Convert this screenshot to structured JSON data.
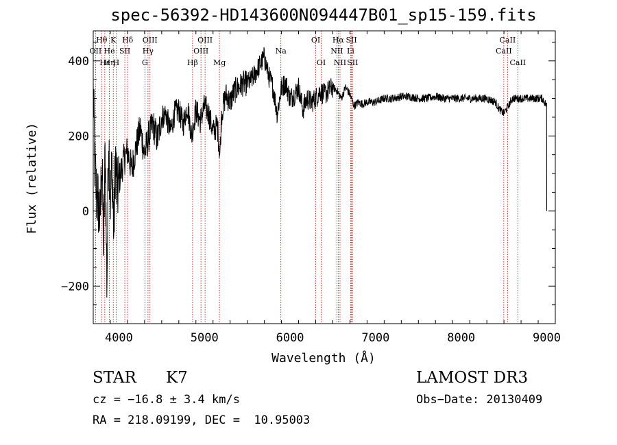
{
  "chart_data": {
    "type": "line",
    "title": "spec-56392-HD143600N094447B01_sp15-159.fits",
    "xlabel": "Wavelength (Å)",
    "ylabel": "Flux (relative)",
    "xlim": [
      3700,
      9100
    ],
    "ylim": [
      -300,
      480
    ],
    "x_ticks": [
      4000,
      5000,
      6000,
      7000,
      8000,
      9000
    ],
    "y_ticks": [
      -200,
      0,
      200,
      400
    ],
    "grid": false,
    "series": [
      {
        "x": [
          3700,
          3720,
          3740,
          3760,
          3780,
          3800,
          3820,
          3840,
          3860,
          3880,
          3900,
          3920,
          3940,
          3960,
          3980,
          4000,
          4050,
          4100,
          4150,
          4200,
          4250,
          4300,
          4350,
          4400,
          4450,
          4500,
          4550,
          4600,
          4650,
          4700,
          4750,
          4800,
          4850,
          4900,
          4950,
          5000,
          5050,
          5100,
          5150,
          5180,
          5200,
          5250,
          5300,
          5350,
          5400,
          5450,
          5500,
          5550,
          5600,
          5650,
          5700,
          5750,
          5800,
          5850,
          5900,
          5950,
          6000,
          6050,
          6100,
          6150,
          6200,
          6250,
          6300,
          6350,
          6400,
          6450,
          6500,
          6550,
          6600,
          6650,
          6700,
          6750,
          6800,
          6850,
          6900,
          7000,
          7100,
          7200,
          7300,
          7400,
          7500,
          7600,
          7700,
          7800,
          7900,
          8000,
          8100,
          8200,
          8300,
          8400,
          8450,
          8500,
          8550,
          8600,
          8650,
          8700,
          8750,
          8800,
          8850,
          8900,
          8950,
          9000
        ],
        "y": [
          320,
          110,
          40,
          20,
          -30,
          140,
          -100,
          170,
          -200,
          210,
          30,
          120,
          -60,
          150,
          40,
          80,
          130,
          160,
          110,
          170,
          220,
          150,
          200,
          230,
          190,
          250,
          260,
          210,
          260,
          270,
          230,
          280,
          200,
          270,
          240,
          280,
          260,
          210,
          230,
          150,
          260,
          310,
          290,
          320,
          330,
          340,
          340,
          350,
          370,
          390,
          410,
          360,
          330,
          260,
          330,
          340,
          300,
          310,
          330,
          270,
          300,
          290,
          300,
          320,
          310,
          320,
          330,
          320,
          300,
          330,
          310,
          280,
          290,
          285,
          290,
          290,
          300,
          300,
          305,
          305,
          300,
          300,
          305,
          300,
          300,
          300,
          300,
          300,
          300,
          290,
          270,
          260,
          280,
          300,
          300,
          300,
          300,
          300,
          300,
          300,
          300,
          280
        ]
      }
    ],
    "line_labels": [
      {
        "text": "Hθ",
        "x": 3798,
        "row": 1
      },
      {
        "text": "K",
        "x": 3934,
        "row": 1
      },
      {
        "text": "Hδ",
        "x": 4102,
        "row": 1
      },
      {
        "text": "OIII",
        "x": 4363,
        "row": 1
      },
      {
        "text": "OIII",
        "x": 5007,
        "row": 1
      },
      {
        "text": "OI",
        "x": 6300,
        "row": 1
      },
      {
        "text": "Hα",
        "x": 6563,
        "row": 1
      },
      {
        "text": "SII",
        "x": 6717,
        "row": 1
      },
      {
        "text": "CaII",
        "x": 8542,
        "row": 1
      },
      {
        "text": "OII",
        "x": 3727,
        "row": 2
      },
      {
        "text": "He",
        "x": 3889,
        "row": 2
      },
      {
        "text": "SII",
        "x": 4069,
        "row": 2
      },
      {
        "text": "Hγ",
        "x": 4340,
        "row": 2
      },
      {
        "text": "OIII",
        "x": 4959,
        "row": 2
      },
      {
        "text": "Na",
        "x": 5893,
        "row": 2
      },
      {
        "text": "NII",
        "x": 6548,
        "row": 2
      },
      {
        "text": "Li",
        "x": 6708,
        "row": 2
      },
      {
        "text": "CaII",
        "x": 8498,
        "row": 2
      },
      {
        "text": "Hε",
        "x": 3835,
        "row": 3
      },
      {
        "text": "Hη",
        "x": 3889,
        "row": 3
      },
      {
        "text": "H",
        "x": 3968,
        "row": 3
      },
      {
        "text": "G",
        "x": 4304,
        "row": 3
      },
      {
        "text": "Hβ",
        "x": 4861,
        "row": 3
      },
      {
        "text": "Mg",
        "x": 5175,
        "row": 3
      },
      {
        "text": "OI",
        "x": 6364,
        "row": 3
      },
      {
        "text": "NII",
        "x": 6584,
        "row": 3
      },
      {
        "text": "SII",
        "x": 6731,
        "row": 3
      },
      {
        "text": "CaII",
        "x": 8662,
        "row": 3
      }
    ],
    "line_markers": [
      3727,
      3798,
      3835,
      3889,
      3934,
      3968,
      4069,
      4102,
      4304,
      4340,
      4363,
      4861,
      4959,
      5007,
      5175,
      5893,
      6300,
      6364,
      6548,
      6563,
      6584,
      6708,
      6717,
      6731,
      8498,
      8542,
      8662
    ]
  },
  "info": {
    "class_label": "STAR",
    "subclass_label": "K7",
    "cz_text": "cz = −16.8 ± 3.4 km/s",
    "coords_text": "RA = 218.09199, DEC =  10.95003",
    "survey_label": "LAMOST DR3",
    "obs_date_text": "Obs−Date: 20130409"
  }
}
